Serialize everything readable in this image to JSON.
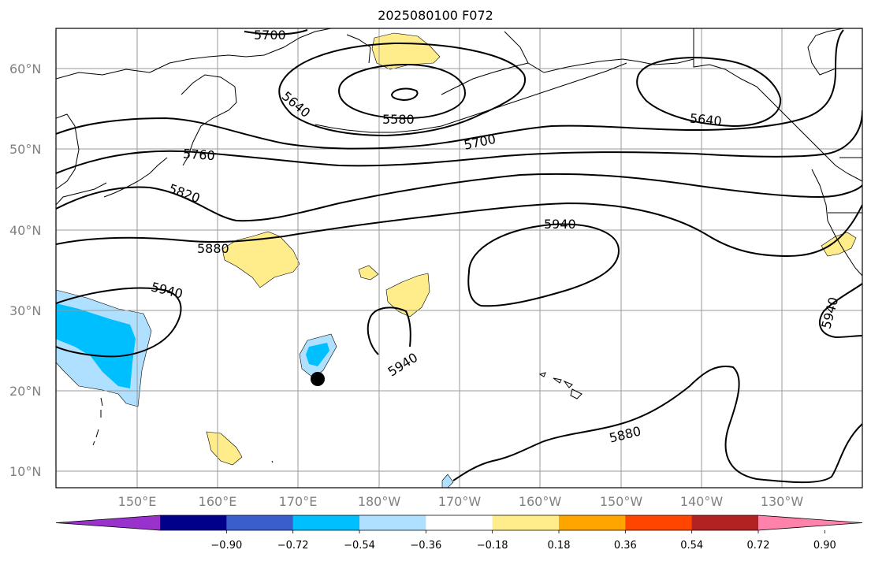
{
  "title": "2025080100 F072",
  "map": {
    "lat_labels": [
      "60°N",
      "50°N",
      "40°N",
      "30°N",
      "20°N",
      "10°N"
    ],
    "lon_labels": [
      "150°E",
      "160°E",
      "170°E",
      "180°W",
      "170°W",
      "160°W",
      "150°W",
      "140°W",
      "130°W"
    ],
    "contour_levels": [
      "5580",
      "5640",
      "5640",
      "5700",
      "5700",
      "5760",
      "5820",
      "5880",
      "5880",
      "5940",
      "5940",
      "5940",
      "5940"
    ],
    "colors": {
      "neg_light": "#b0e0ff",
      "neg_mid": "#00bfff",
      "pos_light": "#ffec8b",
      "storm_marker": "#000000"
    }
  },
  "colorbar": {
    "colors": [
      "#9932cc",
      "#00008b",
      "#3a5fcd",
      "#00bfff",
      "#b0e0ff",
      "#ffffff",
      "#ffec8b",
      "#ffa500",
      "#ff4500",
      "#b22222",
      "#ff82ab"
    ],
    "tick_labels": [
      "−0.90",
      "−0.72",
      "−0.54",
      "−0.36",
      "−0.18",
      "0.18",
      "0.36",
      "0.54",
      "0.72",
      "0.90"
    ]
  }
}
